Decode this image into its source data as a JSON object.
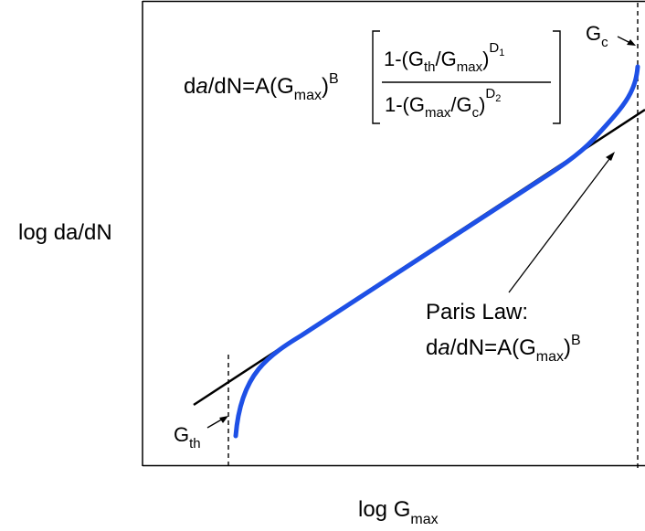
{
  "chart_data": {
    "type": "line",
    "title": "",
    "xlabel": "log G",
    "xlabel_sub": "max",
    "ylabel": "log da/dN",
    "grid": false,
    "legend": "none",
    "axis_ticks": false,
    "series": [
      {
        "name": "",
        "color": "#1e50e6"
      },
      {
        "name": "",
        "color": "#000000"
      }
    ],
    "annotations": {
      "gth": {
        "base": "G",
        "sub": "th"
      },
      "gc": {
        "base": "G",
        "sub": "c"
      },
      "paris_line1": "Paris Law:",
      "paris_formula": {
        "p1": "d",
        "p2": "a",
        "p3": "/dN=A(G",
        "p4": "max",
        "p5": ")",
        "p6": "B"
      },
      "equation": {
        "lhs": {
          "p1": "d",
          "p2": "a",
          "p3": "/dN=A(G",
          "p4": "max",
          "p5": ")",
          "p6": "B"
        },
        "numerator": {
          "p1": "1-(G",
          "p2": "th",
          "p3": "/G",
          "p4": "max",
          "p5": ")",
          "p6": "D",
          "p7": "1"
        },
        "denominator": {
          "p1": "1-(G",
          "p2": "max",
          "p3": "/G",
          "p4": "c",
          "p5": ")",
          "p6": "D",
          "p7": "2"
        }
      }
    }
  }
}
